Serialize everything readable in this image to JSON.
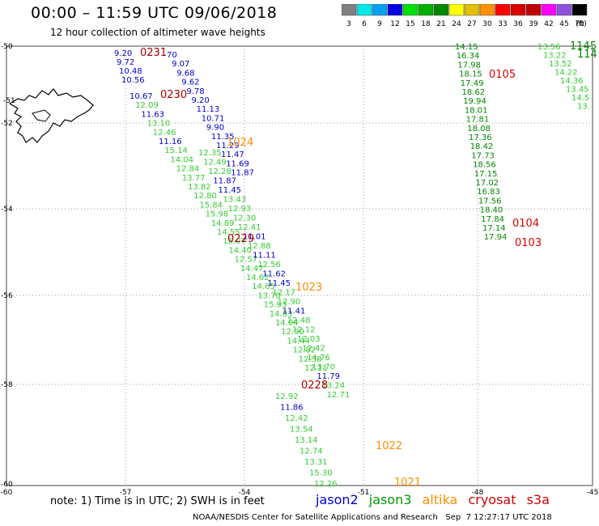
{
  "header": {
    "title": "00:00 – 11:59 UTC 09/06/2018",
    "subtitle": "12 hour collection of altimeter wave heights"
  },
  "legend": {
    "unit": "(ft)",
    "bins": [
      {
        "label": "3",
        "color": "#808080"
      },
      {
        "label": "6",
        "color": "#00e8e8"
      },
      {
        "label": "9",
        "color": "#00a0f0"
      },
      {
        "label": "12",
        "color": "#0000e0"
      },
      {
        "label": "15",
        "color": "#00e000"
      },
      {
        "label": "18",
        "color": "#00b000"
      },
      {
        "label": "21",
        "color": "#008800"
      },
      {
        "label": "24",
        "color": "#ffff00"
      },
      {
        "label": "27",
        "color": "#e0c000"
      },
      {
        "label": "30",
        "color": "#ff9000"
      },
      {
        "label": "33",
        "color": "#ff0000"
      },
      {
        "label": "36",
        "color": "#d80000"
      },
      {
        "label": "39",
        "color": "#c00000"
      },
      {
        "label": "42",
        "color": "#ff00ff"
      },
      {
        "label": "45",
        "color": "#9050e0"
      },
      {
        "label": "70",
        "color": "#000000"
      }
    ]
  },
  "axes": {
    "lon_ticks": [
      "-60",
      "-57",
      "-54",
      "-51",
      "-48",
      "-45"
    ],
    "lat_ticks": [
      "-50",
      "-52",
      "-54",
      "-56",
      "-58",
      "-60"
    ],
    "hidden_lat_tick": "-51"
  },
  "colors": {
    "jason2": "#0000cc",
    "jason3": "#008800",
    "jason3_light": "#33cc33",
    "altika": "#ff8c00",
    "cryosat": "#aa0000",
    "s3a": "#dd0000",
    "grid": "#aaaaaa"
  },
  "track_labels": [
    {
      "text": "0231",
      "color": "#aa0000"
    },
    {
      "text": "0230",
      "color": "#aa0000"
    },
    {
      "text": "1024",
      "color": "#ff8c00"
    },
    {
      "text": "0229",
      "color": "#aa0000"
    },
    {
      "text": "1023",
      "color": "#ff8c00"
    },
    {
      "text": "0228",
      "color": "#aa0000"
    },
    {
      "text": "1022",
      "color": "#ff8c00"
    },
    {
      "text": "1021",
      "color": "#ff8c00"
    },
    {
      "text": "0105",
      "color": "#dd0000"
    },
    {
      "text": "0104",
      "color": "#dd0000"
    },
    {
      "text": "0103",
      "color": "#dd0000"
    },
    {
      "text": "1145",
      "color": "#008800"
    },
    {
      "text": "114",
      "color": "#008800"
    }
  ],
  "tracks": {
    "jason2_a": [
      "9.20",
      "9.72",
      "10.48",
      "10.56"
    ],
    "cyan_a": [
      "70",
      "9.07",
      "9.68",
      "9.62",
      "9.78",
      "9.20",
      "11.13",
      "10.71",
      "9.90",
      "11.35",
      "11.29",
      "11.47",
      "11.69",
      "11.87"
    ],
    "mixed_b": [
      "10.67",
      "12.09",
      "11.63",
      "13.10",
      "12.46",
      "11.16",
      "15.14",
      "14.04",
      "12.84",
      "13.77",
      "13.82",
      "12.80",
      "15.84",
      "15.98",
      "14.89",
      "14.55",
      "15.07",
      "14.40",
      "12.57",
      "14.47",
      "14.62",
      "14.65",
      "13.70",
      "15.93",
      "14.83",
      "14.04",
      "12.90",
      "14.44",
      "12.82",
      "12.38",
      "12.11"
    ],
    "mixed_c": [
      "12.35",
      "12.49",
      "12.28",
      "11.87",
      "11.45",
      "13.43",
      "12.93",
      "12.30",
      "12.41",
      "11.01",
      "12.88",
      "11.11",
      "12.56",
      "11.62",
      "11.45",
      "12.17",
      "12.90",
      "11.41",
      "12.48",
      "12.12",
      "12.03",
      "12.42",
      "14.76",
      "13.70",
      "11.79",
      "13.24",
      "12.71"
    ],
    "mixed_d": [
      "12.92",
      "11.86",
      "12.42",
      "13.54",
      "13.14",
      "12.74",
      "13.31",
      "15.30",
      "12.26"
    ],
    "jason3_e": [
      "14.15",
      "16.34",
      "17.98",
      "18.15",
      "17.49",
      "18.62",
      "19.94",
      "18.01",
      "17.81",
      "18.08",
      "17.36",
      "18.42",
      "17.73",
      "18.56",
      "17.15",
      "17.02",
      "16.83",
      "17.56",
      "18.40",
      "17.84",
      "17.14",
      "17.94"
    ],
    "jason3_f": [
      "13.56",
      "13.22",
      "13.52",
      "14.22",
      "14.36",
      "13.45",
      "14.5",
      "13."
    ]
  },
  "notes": {
    "note": "note: 1) Time is in UTC; 2) SWH is in feet",
    "satellites": [
      {
        "name": "jason2",
        "color": "#0000cc"
      },
      {
        "name": "jason3",
        "color": "#009900"
      },
      {
        "name": "altika",
        "color": "#ff8c00"
      },
      {
        "name": "cryosat",
        "color": "#cc0000"
      },
      {
        "name": "s3a",
        "color": "#cc0000"
      }
    ],
    "footer": "NOAA/NESDIS Center for Satellite Applications and Research   Sep  7 12:27:17 UTC 2018"
  }
}
